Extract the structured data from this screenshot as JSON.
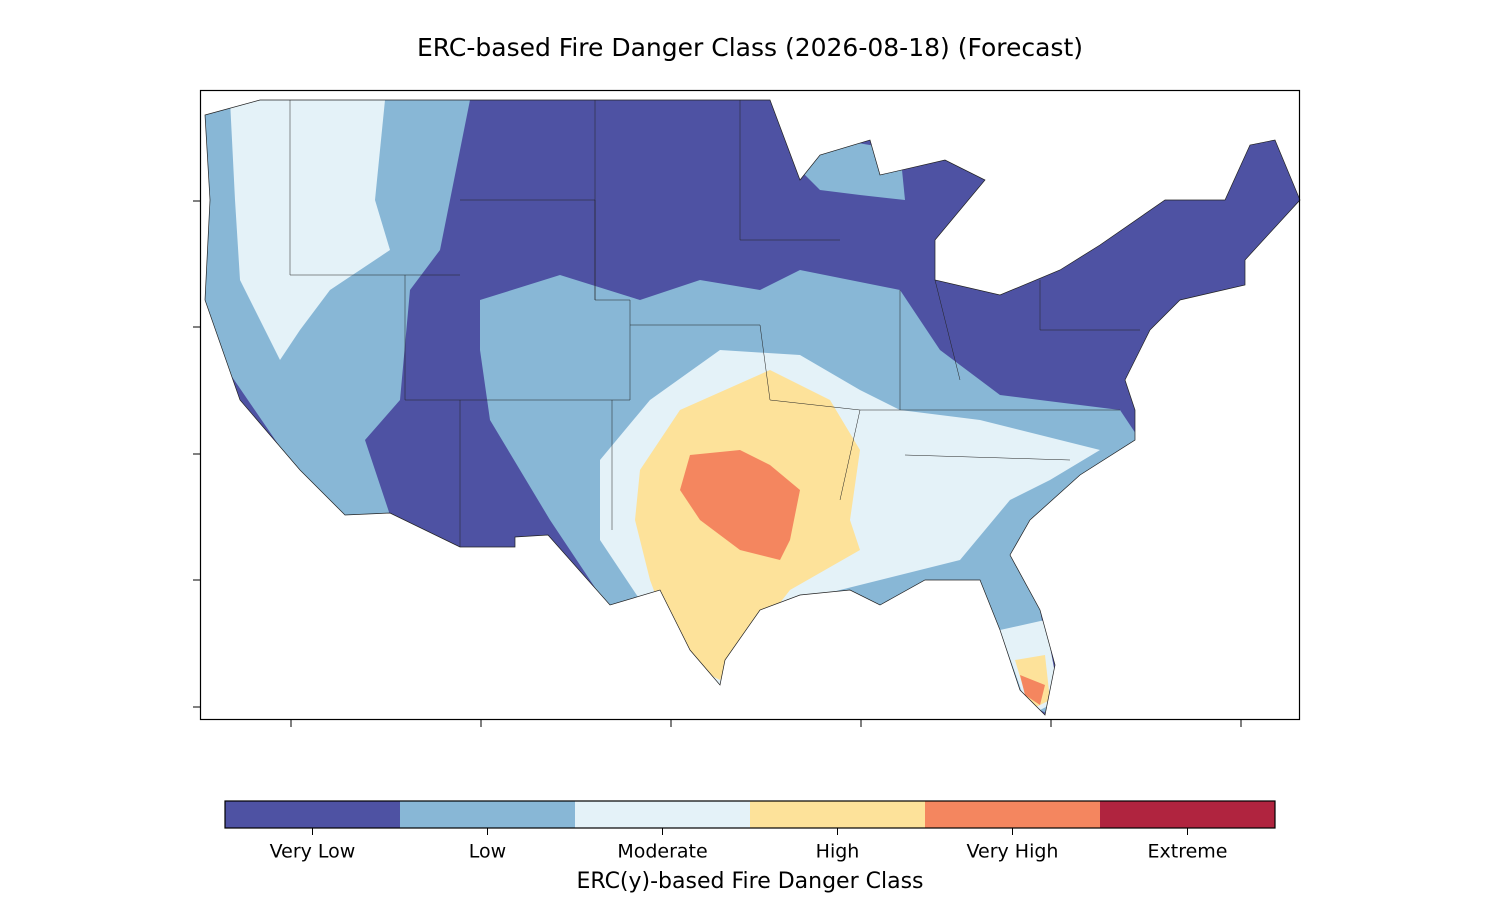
{
  "title": "ERC-based Fire Danger Class (2026-08-18) (Forecast)",
  "legend": {
    "label": "ERC(y)-based Fire Danger Class",
    "classes": [
      {
        "name": "Very Low",
        "color": "#4e52a3"
      },
      {
        "name": "Low",
        "color": "#88b7d6"
      },
      {
        "name": "Moderate",
        "color": "#e4f2f8"
      },
      {
        "name": "High",
        "color": "#fde29a"
      },
      {
        "name": "Very High",
        "color": "#f4865f"
      },
      {
        "name": "Extreme",
        "color": "#b0243f"
      }
    ]
  }
}
